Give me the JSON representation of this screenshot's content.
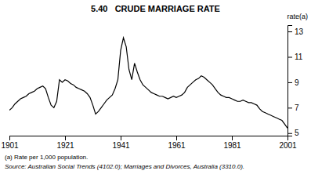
{
  "chart_data": {
    "type": "line",
    "title": "5.40   CRUDE MARRIAGE RATE",
    "y_label": "rate(a)",
    "annotations": [
      "(a) Rate per 1,000 population.",
      "Source: Australian Social Trends (4102.0); Marriages and Divorces, Australia (3310.0)."
    ],
    "color": "#000000",
    "x": [
      1901,
      1902,
      1903,
      1904,
      1905,
      1906,
      1907,
      1908,
      1909,
      1910,
      1911,
      1912,
      1913,
      1914,
      1915,
      1916,
      1917,
      1918,
      1919,
      1920,
      1921,
      1922,
      1923,
      1924,
      1925,
      1926,
      1927,
      1928,
      1929,
      1930,
      1931,
      1932,
      1933,
      1934,
      1935,
      1936,
      1937,
      1938,
      1939,
      1940,
      1941,
      1942,
      1943,
      1944,
      1945,
      1946,
      1947,
      1948,
      1949,
      1950,
      1951,
      1952,
      1953,
      1954,
      1955,
      1956,
      1957,
      1958,
      1959,
      1960,
      1961,
      1962,
      1963,
      1964,
      1965,
      1966,
      1967,
      1968,
      1969,
      1970,
      1971,
      1972,
      1973,
      1974,
      1975,
      1976,
      1977,
      1978,
      1979,
      1980,
      1981,
      1982,
      1983,
      1984,
      1985,
      1986,
      1987,
      1988,
      1989,
      1990,
      1991,
      1992,
      1993,
      1994,
      1995,
      1996,
      1997,
      1998,
      1999,
      2000,
      2001
    ],
    "values": [
      6.8,
      7.0,
      7.3,
      7.5,
      7.7,
      7.8,
      7.9,
      8.1,
      8.2,
      8.3,
      8.5,
      8.6,
      8.7,
      8.5,
      7.8,
      7.2,
      7.0,
      7.5,
      9.2,
      9.0,
      9.2,
      9.1,
      8.9,
      8.8,
      8.6,
      8.5,
      8.4,
      8.3,
      8.1,
      7.8,
      7.2,
      6.5,
      6.7,
      7.0,
      7.3,
      7.6,
      7.8,
      8.0,
      8.5,
      9.2,
      11.5,
      12.5,
      11.8,
      10.0,
      9.2,
      10.5,
      9.8,
      9.2,
      8.8,
      8.6,
      8.4,
      8.2,
      8.1,
      8.0,
      7.9,
      7.9,
      7.8,
      7.7,
      7.8,
      7.9,
      7.8,
      7.9,
      8.0,
      8.2,
      8.6,
      8.8,
      9.0,
      9.2,
      9.3,
      9.5,
      9.4,
      9.2,
      9.0,
      8.8,
      8.5,
      8.2,
      8.0,
      7.9,
      7.8,
      7.8,
      7.7,
      7.6,
      7.5,
      7.5,
      7.6,
      7.5,
      7.4,
      7.4,
      7.3,
      7.2,
      6.9,
      6.7,
      6.6,
      6.5,
      6.4,
      6.3,
      6.2,
      6.1,
      6.0,
      5.7,
      5.4
    ],
    "xlim": [
      1901,
      2001
    ],
    "xticks": [
      1901,
      1921,
      1941,
      1961,
      1981,
      2001
    ],
    "ylim": [
      4.8,
      13.5
    ],
    "yticks": [
      5,
      7,
      9,
      11,
      13
    ],
    "grid": false
  }
}
